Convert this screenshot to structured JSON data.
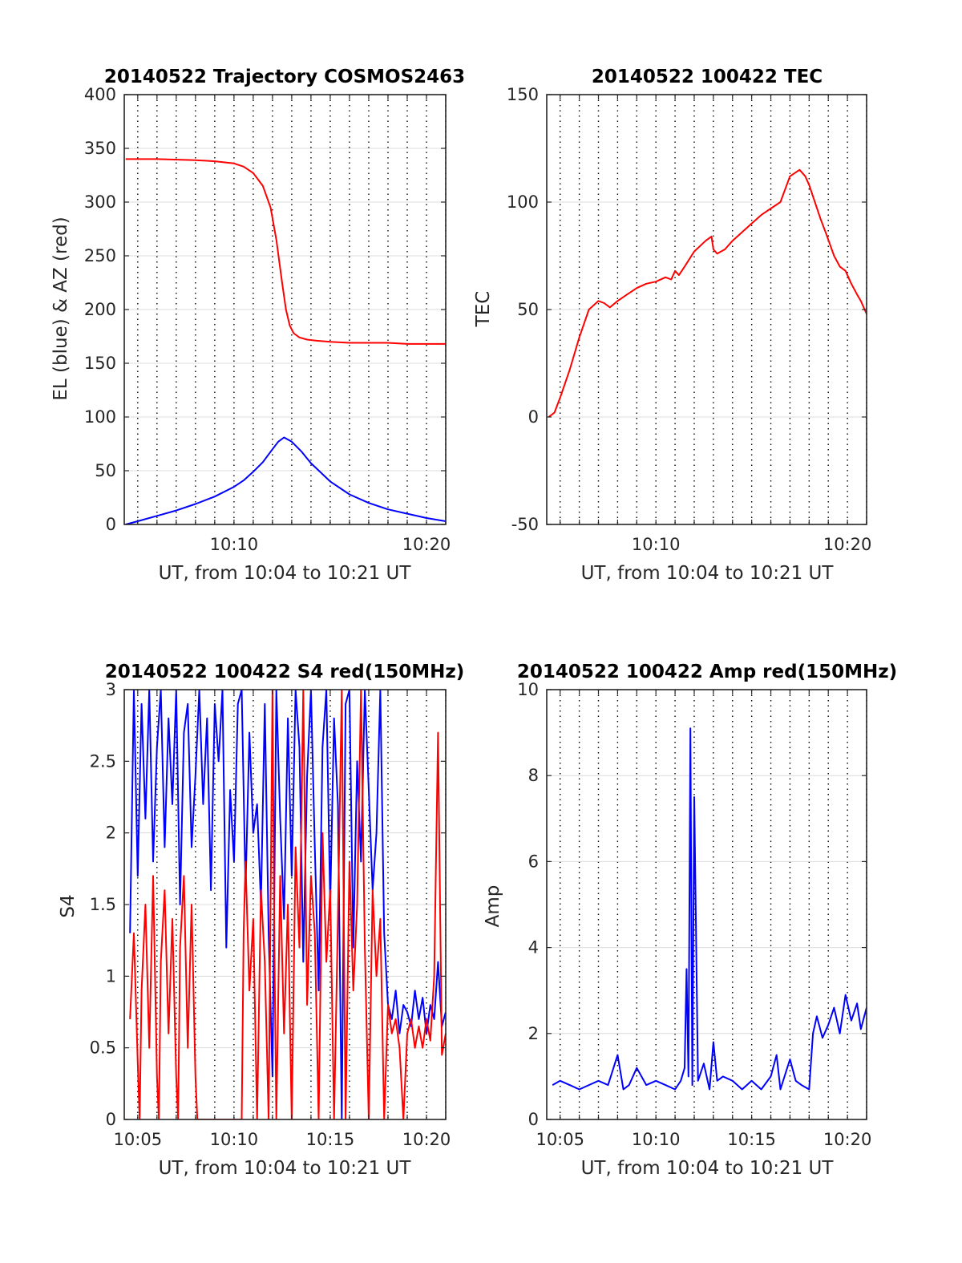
{
  "chart_data": [
    {
      "type": "line",
      "title": "20140522 Trajectory COSMOS2463",
      "xlabel": "UT, from 10:04 to 10:21 UT",
      "ylabel": "EL (blue) & AZ (red)",
      "x_unit": "minutes after 10:00 UT",
      "xlim": [
        4.3,
        21.0
      ],
      "ylim": [
        0,
        400
      ],
      "xticks": [
        {
          "value": 10,
          "label": "10:10"
        },
        {
          "value": 20,
          "label": "10:20"
        }
      ],
      "yticks": [
        {
          "value": 0,
          "label": "0"
        },
        {
          "value": 50,
          "label": "50"
        },
        {
          "value": 100,
          "label": "100"
        },
        {
          "value": 150,
          "label": "150"
        },
        {
          "value": 200,
          "label": "200"
        },
        {
          "value": 250,
          "label": "250"
        },
        {
          "value": 300,
          "label": "300"
        },
        {
          "value": 350,
          "label": "350"
        },
        {
          "value": 400,
          "label": "400"
        }
      ],
      "grid": "on",
      "series": [
        {
          "color": "#0000ff",
          "x": [
            4.37,
            5.0,
            6.0,
            7.0,
            8.0,
            9.0,
            10.0,
            10.5,
            11.0,
            11.5,
            12.0,
            12.3,
            12.6,
            13.0,
            13.5,
            14.0,
            15.0,
            16.0,
            17.0,
            18.0,
            19.0,
            20.0,
            21.0
          ],
          "y": [
            0,
            3,
            8,
            13,
            19,
            26,
            35,
            41,
            49,
            58,
            70,
            77,
            81,
            77,
            68,
            57,
            40,
            28,
            20,
            14,
            10,
            6,
            3
          ]
        },
        {
          "color": "#ff0000",
          "x": [
            4.37,
            6.0,
            8.0,
            9.0,
            10.0,
            10.5,
            11.0,
            11.5,
            11.9,
            12.2,
            12.5,
            12.7,
            12.9,
            13.1,
            13.4,
            13.8,
            14.3,
            15.0,
            16.0,
            17.0,
            18.0,
            19.0,
            20.0,
            21.0
          ],
          "y": [
            340,
            340,
            339,
            338,
            336,
            333,
            327,
            315,
            295,
            265,
            225,
            200,
            185,
            178,
            174,
            172,
            171,
            170,
            169,
            169,
            169,
            168,
            168,
            168
          ]
        }
      ]
    },
    {
      "type": "line",
      "title": "20140522 100422 TEC",
      "xlabel": "UT, from 10:04 to 10:21 UT",
      "ylabel": "TEC",
      "x_unit": "minutes after 10:00 UT",
      "xlim": [
        4.3,
        21.0
      ],
      "ylim": [
        -50,
        150
      ],
      "xticks": [
        {
          "value": 10,
          "label": "10:10"
        },
        {
          "value": 20,
          "label": "10:20"
        }
      ],
      "yticks": [
        {
          "value": -50,
          "label": "-50"
        },
        {
          "value": 0,
          "label": "0"
        },
        {
          "value": 50,
          "label": "50"
        },
        {
          "value": 100,
          "label": "100"
        },
        {
          "value": 150,
          "label": "150"
        }
      ],
      "grid": "on",
      "series": [
        {
          "color": "#ff0000",
          "x": [
            4.4,
            4.7,
            5.0,
            5.5,
            6.0,
            6.5,
            7.0,
            7.3,
            7.6,
            8.0,
            8.5,
            9.0,
            9.5,
            10.0,
            10.5,
            10.8,
            11.0,
            11.2,
            11.5,
            12.0,
            12.6,
            12.9,
            13.0,
            13.2,
            13.6,
            14.0,
            14.5,
            15.0,
            15.5,
            16.0,
            16.5,
            17.0,
            17.5,
            17.8,
            18.0,
            18.3,
            18.6,
            18.9,
            19.3,
            19.6,
            19.9,
            20.2,
            20.5,
            20.7,
            21.0
          ],
          "y": [
            0,
            2,
            9,
            22,
            37,
            50,
            54,
            53,
            51,
            54,
            57,
            60,
            62,
            63,
            65,
            64,
            68,
            66,
            70,
            77,
            82,
            84,
            78,
            76,
            78,
            82,
            86,
            90,
            94,
            97,
            100,
            112,
            115,
            112,
            108,
            100,
            92,
            85,
            75,
            70,
            68,
            62,
            57,
            54,
            48
          ]
        }
      ]
    },
    {
      "type": "line",
      "title": "20140522 100422 S4 red(150MHz)",
      "xlabel": "UT, from 10:04 to 10:21 UT",
      "ylabel": "S4",
      "x_unit": "minutes after 10:00 UT",
      "xlim": [
        4.3,
        21.0
      ],
      "ylim": [
        0,
        3
      ],
      "xticks": [
        {
          "value": 5,
          "label": "10:05"
        },
        {
          "value": 10,
          "label": "10:10"
        },
        {
          "value": 15,
          "label": "10:15"
        },
        {
          "value": 20,
          "label": "10:20"
        }
      ],
      "yticks": [
        {
          "value": 0,
          "label": "0"
        },
        {
          "value": 0.5,
          "label": "0.5"
        },
        {
          "value": 1,
          "label": "1"
        },
        {
          "value": 1.5,
          "label": "1.5"
        },
        {
          "value": 2,
          "label": "2"
        },
        {
          "value": 2.5,
          "label": "2.5"
        },
        {
          "value": 3,
          "label": "3"
        }
      ],
      "grid": "on",
      "series": [
        {
          "color": "#0000ff",
          "x": [
            4.6,
            4.8,
            5.0,
            5.2,
            5.4,
            5.6,
            5.8,
            6.0,
            6.2,
            6.4,
            6.6,
            6.8,
            7.0,
            7.2,
            7.4,
            7.6,
            7.8,
            8.0,
            8.2,
            8.4,
            8.6,
            8.8,
            9.0,
            9.2,
            9.4,
            9.6,
            9.8,
            10.0,
            10.2,
            10.4,
            10.6,
            10.8,
            11.0,
            11.2,
            11.4,
            11.6,
            11.8,
            12.0,
            12.2,
            12.4,
            12.6,
            12.8,
            13.0,
            13.2,
            13.4,
            13.6,
            13.8,
            14.0,
            14.2,
            14.4,
            14.6,
            14.8,
            15.0,
            15.2,
            15.4,
            15.6,
            15.8,
            16.0,
            16.2,
            16.4,
            16.6,
            16.8,
            17.0,
            17.2,
            17.4,
            17.6,
            17.8,
            18.0,
            18.2,
            18.4,
            18.6,
            18.8,
            19.0,
            19.2,
            19.4,
            19.6,
            19.8,
            20.0,
            20.2,
            20.4,
            20.6,
            20.8,
            21.0
          ],
          "y": [
            1.3,
            3.0,
            1.7,
            2.9,
            2.1,
            3.0,
            1.8,
            2.6,
            3.0,
            1.9,
            2.8,
            2.2,
            3.0,
            1.5,
            2.7,
            2.9,
            1.9,
            2.4,
            3.0,
            2.2,
            2.8,
            1.6,
            2.9,
            2.5,
            3.0,
            1.2,
            2.3,
            1.8,
            2.9,
            3.0,
            1.6,
            2.7,
            2.0,
            2.2,
            1.5,
            2.9,
            1.3,
            0.3,
            3.0,
            2.1,
            1.4,
            2.8,
            1.7,
            3.0,
            2.6,
            1.1,
            2.4,
            3.0,
            1.9,
            0.9,
            2.6,
            3.0,
            1.5,
            2.8,
            2.2,
            0.0,
            2.9,
            3.0,
            1.2,
            2.5,
            1.8,
            3.0,
            2.3,
            1.6,
            2.0,
            3.0,
            1.3,
            0.8,
            0.7,
            0.9,
            0.6,
            0.8,
            0.75,
            0.65,
            0.9,
            0.7,
            0.85,
            0.6,
            0.8,
            0.7,
            1.1,
            0.65,
            0.75
          ]
        },
        {
          "color": "#ff0000",
          "x": [
            4.6,
            4.8,
            5.0,
            5.1,
            5.2,
            5.4,
            5.6,
            5.8,
            6.0,
            6.1,
            6.2,
            6.4,
            6.6,
            6.8,
            7.0,
            7.1,
            7.2,
            7.4,
            7.6,
            7.8,
            8.0,
            8.1,
            8.2,
            8.4,
            9.0,
            9.5,
            10.0,
            10.4,
            10.5,
            10.6,
            10.8,
            11.0,
            11.2,
            11.4,
            11.6,
            11.8,
            12.0,
            12.1,
            12.2,
            12.4,
            12.6,
            12.8,
            13.0,
            13.2,
            13.4,
            13.6,
            13.8,
            14.0,
            14.2,
            14.4,
            14.6,
            14.8,
            15.0,
            15.2,
            15.4,
            15.6,
            15.8,
            16.0,
            16.2,
            16.4,
            16.6,
            16.8,
            17.0,
            17.2,
            17.4,
            17.6,
            17.8,
            18.0,
            18.2,
            18.4,
            18.6,
            18.8,
            19.0,
            19.2,
            19.4,
            19.6,
            19.8,
            20.0,
            20.2,
            20.4,
            20.6,
            20.8,
            21.0
          ],
          "y": [
            0.7,
            1.3,
            0.4,
            0.0,
            0.9,
            1.5,
            0.5,
            1.7,
            0.3,
            0.0,
            1.1,
            1.6,
            0.6,
            1.4,
            0.3,
            0.0,
            1.2,
            1.7,
            0.5,
            1.5,
            0.3,
            0.0,
            0.0,
            0.0,
            0.0,
            0.0,
            0.0,
            0.0,
            1.3,
            1.8,
            0.9,
            1.4,
            0.0,
            1.6,
            1.1,
            0.0,
            3.0,
            1.2,
            0.0,
            1.7,
            0.6,
            1.5,
            0.0,
            1.9,
            1.2,
            3.0,
            0.8,
            1.7,
            1.3,
            0.0,
            2.0,
            1.1,
            1.6,
            0.0,
            1.4,
            3.0,
            0.0,
            1.8,
            0.9,
            1.5,
            3.0,
            1.2,
            0.0,
            1.6,
            1.0,
            1.4,
            0.0,
            0.8,
            0.6,
            0.7,
            0.5,
            0.0,
            0.6,
            0.7,
            0.5,
            0.65,
            0.5,
            0.7,
            0.55,
            1.0,
            2.7,
            0.45,
            0.6
          ]
        }
      ]
    },
    {
      "type": "line",
      "title": "20140522 100422 Amp red(150MHz)",
      "xlabel": "UT, from 10:04 to 10:21 UT",
      "ylabel": "Amp",
      "x_unit": "minutes after 10:00 UT",
      "xlim": [
        4.3,
        21.0
      ],
      "ylim": [
        0,
        10
      ],
      "xticks": [
        {
          "value": 5,
          "label": "10:05"
        },
        {
          "value": 10,
          "label": "10:10"
        },
        {
          "value": 15,
          "label": "10:15"
        },
        {
          "value": 20,
          "label": "10:20"
        }
      ],
      "yticks": [
        {
          "value": 0,
          "label": "0"
        },
        {
          "value": 2,
          "label": "2"
        },
        {
          "value": 4,
          "label": "4"
        },
        {
          "value": 6,
          "label": "6"
        },
        {
          "value": 8,
          "label": "8"
        },
        {
          "value": 10,
          "label": "10"
        }
      ],
      "grid": "on",
      "series": [
        {
          "color": "#0000ff",
          "x": [
            4.6,
            5.0,
            5.5,
            6.0,
            6.5,
            7.0,
            7.5,
            8.0,
            8.3,
            8.6,
            9.0,
            9.5,
            10.0,
            10.5,
            11.0,
            11.3,
            11.5,
            11.6,
            11.7,
            11.8,
            11.9,
            12.0,
            12.2,
            12.5,
            12.8,
            13.0,
            13.2,
            13.5,
            14.0,
            14.5,
            15.0,
            15.5,
            16.0,
            16.3,
            16.5,
            17.0,
            17.3,
            17.6,
            18.0,
            18.2,
            18.4,
            18.7,
            19.0,
            19.3,
            19.6,
            19.9,
            20.2,
            20.5,
            20.7,
            21.0
          ],
          "y": [
            0.8,
            0.9,
            0.8,
            0.7,
            0.8,
            0.9,
            0.8,
            1.5,
            0.7,
            0.8,
            1.2,
            0.8,
            0.9,
            0.8,
            0.7,
            0.9,
            1.2,
            3.5,
            1.0,
            9.1,
            0.8,
            7.5,
            0.9,
            1.3,
            0.7,
            1.8,
            0.9,
            1.0,
            0.9,
            0.7,
            0.9,
            0.7,
            1.0,
            1.5,
            0.7,
            1.4,
            0.9,
            0.8,
            0.7,
            2.0,
            2.4,
            1.9,
            2.2,
            2.6,
            2.0,
            2.9,
            2.3,
            2.7,
            2.1,
            2.6
          ]
        }
      ]
    }
  ]
}
